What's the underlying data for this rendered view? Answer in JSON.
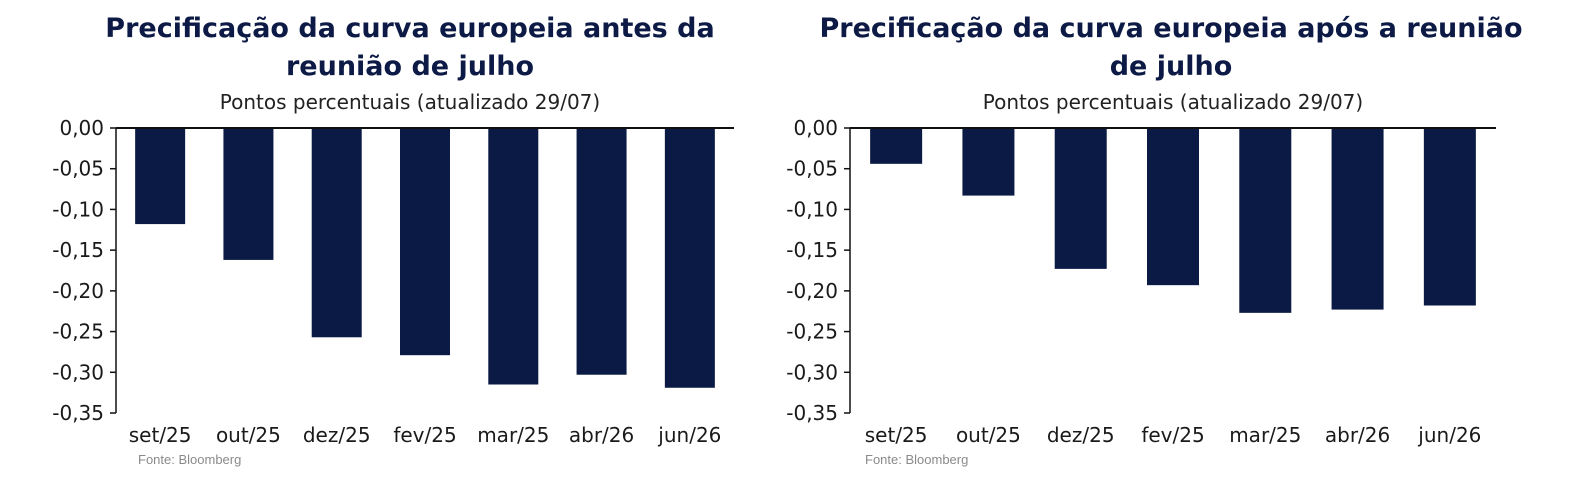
{
  "source_label": "Fonte: Bloomberg",
  "colors": {
    "bar": "#0a1a44",
    "axis": "#111111",
    "title": "#0c1a45"
  },
  "chart_data": [
    {
      "type": "bar",
      "title": "Precificação da curva europeia antes da reunião de julho",
      "subtitle": "Pontos percentuais (atualizado 29/07)",
      "categories": [
        "set/25",
        "out/25",
        "dez/25",
        "fev/25",
        "mar/25",
        "abr/26",
        "jun/26"
      ],
      "values": [
        -0.118,
        -0.162,
        -0.257,
        -0.279,
        -0.315,
        -0.303,
        -0.319
      ],
      "ylim": [
        -0.35,
        0.0
      ],
      "yticks": [
        "0,00",
        "-0,05",
        "-0,10",
        "-0,15",
        "-0,20",
        "-0,25",
        "-0,30",
        "-0,35"
      ],
      "xlabel": "",
      "ylabel": "",
      "grid": false,
      "legend": "none"
    },
    {
      "type": "bar",
      "title": "Precificação da curva europeia após a reunião de julho",
      "subtitle": "Pontos percentuais (atualizado 29/07)",
      "categories": [
        "set/25",
        "out/25",
        "dez/25",
        "fev/25",
        "mar/25",
        "abr/26",
        "jun/26"
      ],
      "values": [
        -0.044,
        -0.083,
        -0.173,
        -0.193,
        -0.227,
        -0.223,
        -0.218
      ],
      "ylim": [
        -0.35,
        0.0
      ],
      "yticks": [
        "0,00",
        "-0,05",
        "-0,10",
        "-0,15",
        "-0,20",
        "-0,25",
        "-0,30",
        "-0,35"
      ],
      "xlabel": "",
      "ylabel": "",
      "grid": false,
      "legend": "none"
    }
  ]
}
